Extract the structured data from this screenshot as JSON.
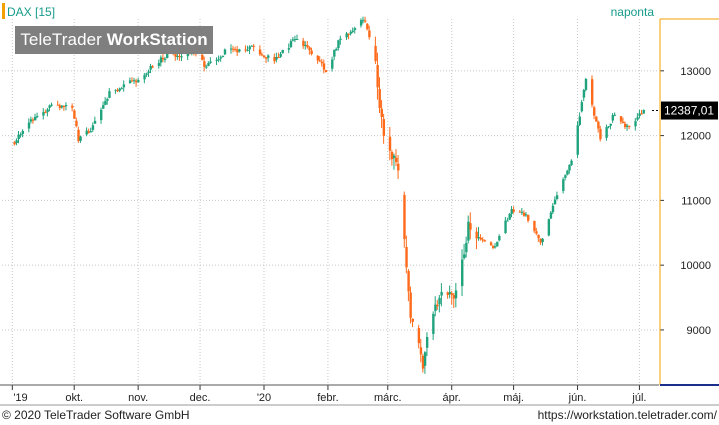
{
  "header": {
    "symbol_label": "DAX [15]",
    "period_label": "naponta"
  },
  "watermark": {
    "brand": "TeleTrader",
    "product": "WorkStation"
  },
  "footer": {
    "copyright": "© 2020 TeleTrader Software GmbH",
    "url": "https://workstation.teletrader.com/"
  },
  "colors": {
    "up": "#1fa37d",
    "down": "#ff6a1a",
    "grid": "#c8c8c8",
    "axis_accent": "#f3a100",
    "header_text": "#169b8a",
    "price_marker_bg": "#000000",
    "price_marker_text": "#ffffff",
    "axis_bottom_line": "#1a2f8c"
  },
  "chart_data": {
    "type": "candlestick",
    "title": "DAX [15]",
    "interval": "naponta",
    "last_price_label": "12387,01",
    "last_price": 12387.01,
    "ylim": [
      8150,
      13800
    ],
    "y_ticks": [
      9000,
      10000,
      11000,
      12000,
      13000
    ],
    "x_labels": [
      {
        "label": "'19",
        "date": "2019-09-01"
      },
      {
        "label": "okt.",
        "date": "2019-10-01"
      },
      {
        "label": "nov.",
        "date": "2019-11-01"
      },
      {
        "label": "dec.",
        "date": "2019-12-01"
      },
      {
        "label": "'20",
        "date": "2020-01-01"
      },
      {
        "label": "febr.",
        "date": "2020-02-01"
      },
      {
        "label": "márc.",
        "date": "2020-03-01"
      },
      {
        "label": "ápr.",
        "date": "2020-04-01"
      },
      {
        "label": "máj.",
        "date": "2020-05-01"
      },
      {
        "label": "jún.",
        "date": "2020-06-01"
      },
      {
        "label": "júl.",
        "date": "2020-07-01"
      }
    ],
    "close_path": [
      {
        "date": "2019-09-02",
        "close": 11900
      },
      {
        "date": "2019-09-10",
        "close": 12250
      },
      {
        "date": "2019-09-20",
        "close": 12450
      },
      {
        "date": "2019-09-30",
        "close": 12430
      },
      {
        "date": "2019-10-03",
        "close": 11950
      },
      {
        "date": "2019-10-09",
        "close": 12100
      },
      {
        "date": "2019-10-18",
        "close": 12650
      },
      {
        "date": "2019-10-31",
        "close": 12860
      },
      {
        "date": "2019-11-15",
        "close": 13250
      },
      {
        "date": "2019-11-29",
        "close": 13250
      },
      {
        "date": "2019-12-04",
        "close": 13050
      },
      {
        "date": "2019-12-13",
        "close": 13300
      },
      {
        "date": "2019-12-27",
        "close": 13350
      },
      {
        "date": "2020-01-06",
        "close": 13150
      },
      {
        "date": "2020-01-17",
        "close": 13530
      },
      {
        "date": "2020-01-31",
        "close": 13000
      },
      {
        "date": "2020-02-07",
        "close": 13500
      },
      {
        "date": "2020-02-19",
        "close": 13790
      },
      {
        "date": "2020-02-24",
        "close": 13050
      },
      {
        "date": "2020-02-28",
        "close": 11900
      },
      {
        "date": "2020-03-06",
        "close": 11550
      },
      {
        "date": "2020-03-12",
        "close": 9160
      },
      {
        "date": "2020-03-16",
        "close": 8740
      },
      {
        "date": "2020-03-18",
        "close": 8440
      },
      {
        "date": "2020-03-20",
        "close": 8930
      },
      {
        "date": "2020-03-27",
        "close": 9630
      },
      {
        "date": "2020-04-03",
        "close": 9520
      },
      {
        "date": "2020-04-09",
        "close": 10560
      },
      {
        "date": "2020-04-21",
        "close": 10250
      },
      {
        "date": "2020-04-30",
        "close": 10860
      },
      {
        "date": "2020-05-07",
        "close": 10760
      },
      {
        "date": "2020-05-14",
        "close": 10340
      },
      {
        "date": "2020-05-22",
        "close": 11070
      },
      {
        "date": "2020-05-29",
        "close": 11590
      },
      {
        "date": "2020-06-05",
        "close": 12850
      },
      {
        "date": "2020-06-12",
        "close": 11950
      },
      {
        "date": "2020-06-19",
        "close": 12330
      },
      {
        "date": "2020-06-26",
        "close": 12100
      },
      {
        "date": "2020-07-03",
        "close": 12390
      }
    ]
  }
}
